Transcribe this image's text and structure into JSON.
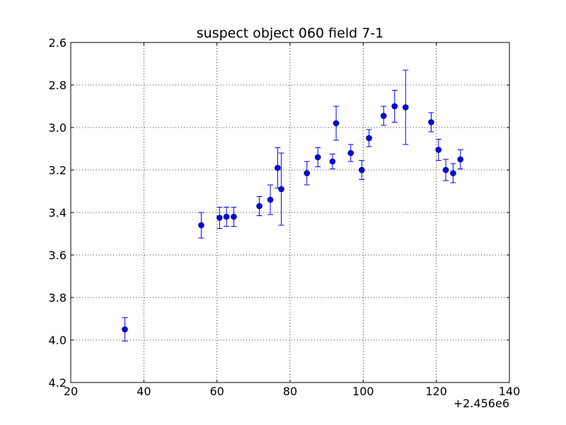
{
  "chart_data": {
    "type": "scatter",
    "title": "suspect object 060 field 7-1",
    "xlabel": "",
    "ylabel": "",
    "x_offset_label": "+2.456e6",
    "xlim": [
      20,
      140
    ],
    "ylim": [
      2.6,
      4.2
    ],
    "y_inverted": true,
    "x_ticks": [
      20,
      40,
      60,
      80,
      100,
      120,
      140
    ],
    "x_tick_labels": [
      "20",
      "40",
      "60",
      "80",
      "100",
      "120",
      "140"
    ],
    "y_ticks": [
      2.6,
      2.8,
      3.0,
      3.2,
      3.4,
      3.6,
      3.8,
      4.0,
      4.2
    ],
    "y_tick_labels": [
      "2.6",
      "2.8",
      "3.0",
      "3.2",
      "3.4",
      "3.6",
      "3.8",
      "4.0",
      "4.2"
    ],
    "grid": true,
    "marker_color": "#0000ff",
    "points": [
      {
        "x": 34.8,
        "y": 3.95,
        "err": 0.055
      },
      {
        "x": 55.7,
        "y": 3.46,
        "err": 0.06
      },
      {
        "x": 60.7,
        "y": 3.425,
        "err": 0.05
      },
      {
        "x": 62.6,
        "y": 3.42,
        "err": 0.045
      },
      {
        "x": 64.6,
        "y": 3.42,
        "err": 0.045
      },
      {
        "x": 71.6,
        "y": 3.37,
        "err": 0.045
      },
      {
        "x": 74.6,
        "y": 3.34,
        "err": 0.07
      },
      {
        "x": 76.6,
        "y": 3.19,
        "err": 0.095
      },
      {
        "x": 77.6,
        "y": 3.29,
        "err": 0.17
      },
      {
        "x": 84.6,
        "y": 3.215,
        "err": 0.055
      },
      {
        "x": 87.6,
        "y": 3.14,
        "err": 0.045
      },
      {
        "x": 91.6,
        "y": 3.16,
        "err": 0.035
      },
      {
        "x": 92.6,
        "y": 2.98,
        "err": 0.08
      },
      {
        "x": 96.6,
        "y": 3.12,
        "err": 0.04
      },
      {
        "x": 99.6,
        "y": 3.2,
        "err": 0.045
      },
      {
        "x": 101.6,
        "y": 3.05,
        "err": 0.04
      },
      {
        "x": 105.6,
        "y": 2.945,
        "err": 0.045
      },
      {
        "x": 108.6,
        "y": 2.9,
        "err": 0.075
      },
      {
        "x": 111.6,
        "y": 2.905,
        "err": 0.175
      },
      {
        "x": 118.6,
        "y": 2.975,
        "err": 0.045
      },
      {
        "x": 120.6,
        "y": 3.105,
        "err": 0.05
      },
      {
        "x": 122.6,
        "y": 3.2,
        "err": 0.05
      },
      {
        "x": 124.6,
        "y": 3.215,
        "err": 0.045
      },
      {
        "x": 126.6,
        "y": 3.15,
        "err": 0.045
      }
    ]
  }
}
